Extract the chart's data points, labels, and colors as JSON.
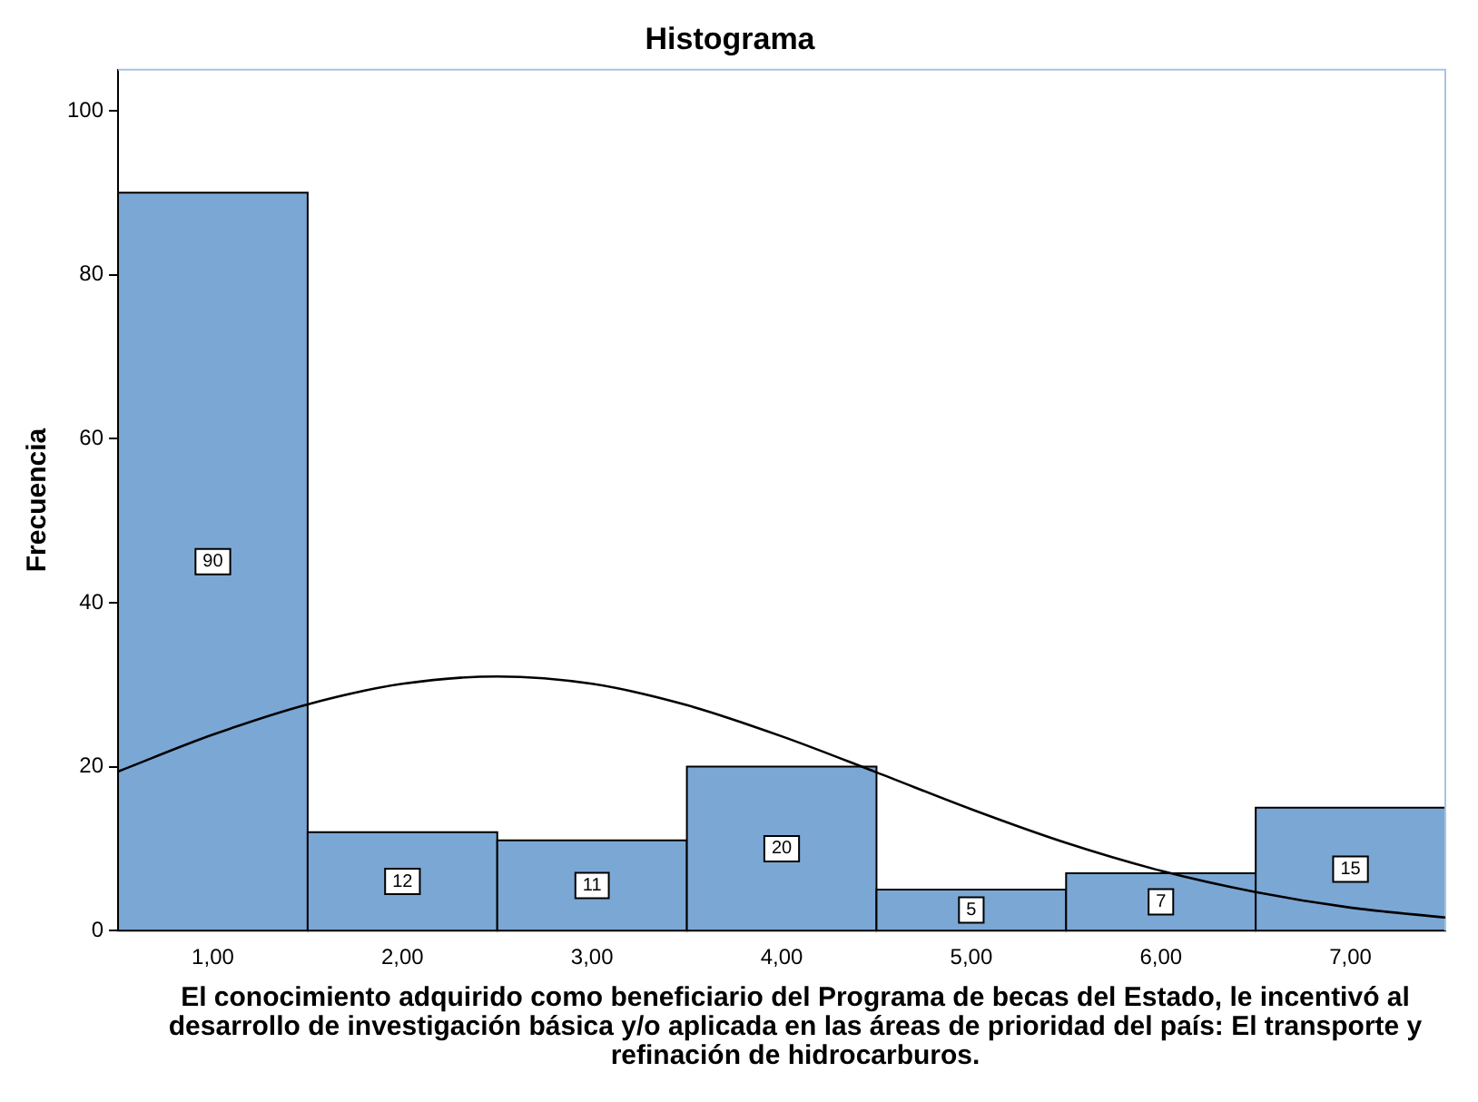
{
  "chart_data": {
    "type": "histogram",
    "title": "Histograma",
    "xlabel": "El conocimiento adquirido como beneficiario del Programa de becas del Estado, le incentivó al desarrollo de investigación básica y/o aplicada en las áreas de prioridad del país: El transporte y refinación de hidrocarburos.",
    "ylabel": "Frecuencia",
    "bins": [
      0.5,
      1.5,
      2.5,
      3.5,
      4.5,
      5.5,
      6.5,
      7.5
    ],
    "values": [
      90,
      12,
      11,
      20,
      5,
      7,
      15
    ],
    "color": "#7ba7d4",
    "value_labels": [
      "90",
      "12",
      "11",
      "20",
      "5",
      "7",
      "15"
    ],
    "series": [
      {
        "type": "line",
        "color": "#000000",
        "x": [
          0.5,
          1,
          1.5,
          2,
          2.5,
          3,
          3.5,
          4,
          4.5,
          5,
          5.5,
          6,
          6.5,
          7,
          7.5
        ],
        "values": [
          19.4,
          23.9,
          27.6,
          30.1,
          31,
          30.1,
          27.5,
          23.7,
          19.3,
          14.8,
          10.7,
          7.3,
          4.7,
          2.8,
          1.6
        ]
      }
    ],
    "marker": "none",
    "xlim": [
      0.5,
      7.5
    ],
    "xticks": [
      {
        "value": 1,
        "label": "1,00"
      },
      {
        "value": 2,
        "label": "2,00"
      },
      {
        "value": 3,
        "label": "3,00"
      },
      {
        "value": 4,
        "label": "4,00"
      },
      {
        "value": 5,
        "label": "5,00"
      },
      {
        "value": 6,
        "label": "6,00"
      },
      {
        "value": 7,
        "label": "7,00"
      }
    ],
    "ylim": [
      0,
      105
    ],
    "yticks": [
      0,
      20,
      40,
      60,
      80,
      100
    ],
    "grid": false
  }
}
